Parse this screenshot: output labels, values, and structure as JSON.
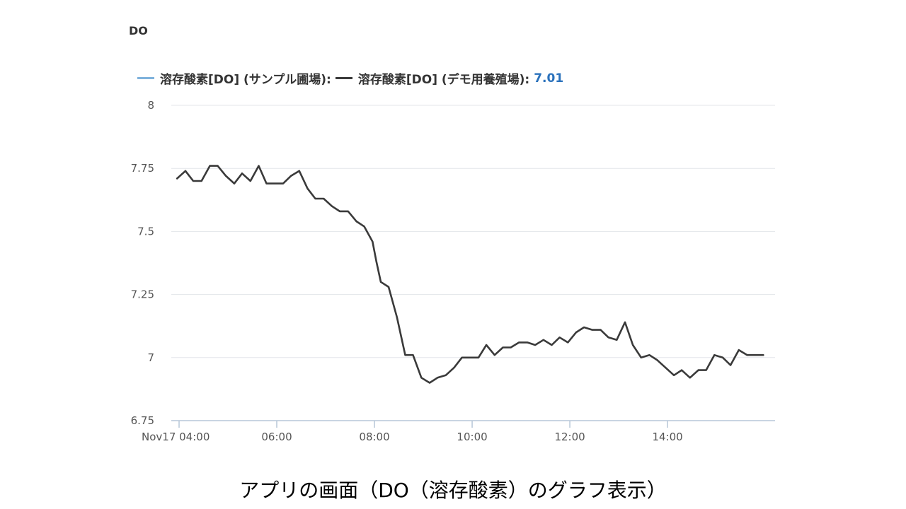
{
  "chart_data": {
    "type": "line",
    "title": "DO",
    "ylim": [
      6.75,
      8
    ],
    "y_ticks": [
      "8",
      "7.75",
      "7.5",
      "7.25",
      "7",
      "6.75"
    ],
    "x_ticks": [
      {
        "t": 4.0,
        "label": "Nov17 04:00"
      },
      {
        "t": 6.0,
        "label": "06:00"
      },
      {
        "t": 8.0,
        "label": "08:00"
      },
      {
        "t": 10.0,
        "label": "10:00"
      },
      {
        "t": 12.0,
        "label": "12:00"
      },
      {
        "t": 14.0,
        "label": "14:00"
      }
    ],
    "x_range": [
      4.0,
      16.1
    ],
    "grid": true,
    "series": [
      {
        "name": "溶存酸素[DO] (サンプル圃場):",
        "color": "#7fb2dc",
        "values": []
      },
      {
        "name": "溶存酸素[DO] (デモ用養殖場):",
        "color": "#3a3a3a",
        "current_value": "7.01",
        "x": [
          3.96,
          4.13,
          4.29,
          4.46,
          4.63,
          4.79,
          4.96,
          5.13,
          5.29,
          5.46,
          5.63,
          5.79,
          5.96,
          6.13,
          6.29,
          6.46,
          6.63,
          6.79,
          6.96,
          7.13,
          7.29,
          7.46,
          7.63,
          7.79,
          7.96,
          8.04,
          8.13,
          8.29,
          8.46,
          8.63,
          8.79,
          8.96,
          9.13,
          9.29,
          9.46,
          9.63,
          9.79,
          9.96,
          10.13,
          10.29,
          10.46,
          10.63,
          10.79,
          10.96,
          11.13,
          11.29,
          11.46,
          11.63,
          11.79,
          11.96,
          12.13,
          12.29,
          12.46,
          12.63,
          12.79,
          12.96,
          13.13,
          13.29,
          13.46,
          13.63,
          13.79,
          13.96,
          14.13,
          14.29,
          14.46,
          14.63,
          14.79,
          14.96,
          15.13,
          15.29,
          15.46,
          15.63,
          15.79,
          15.96
        ],
        "y": [
          7.71,
          7.74,
          7.7,
          7.7,
          7.76,
          7.76,
          7.72,
          7.69,
          7.73,
          7.7,
          7.76,
          7.69,
          7.69,
          7.69,
          7.72,
          7.74,
          7.67,
          7.63,
          7.63,
          7.6,
          7.58,
          7.58,
          7.54,
          7.52,
          7.46,
          7.38,
          7.3,
          7.28,
          7.16,
          7.01,
          7.01,
          6.92,
          6.9,
          6.92,
          6.93,
          6.96,
          7.0,
          7.0,
          7.0,
          7.05,
          7.01,
          7.04,
          7.04,
          7.06,
          7.06,
          7.05,
          7.07,
          7.05,
          7.08,
          7.06,
          7.1,
          7.12,
          7.11,
          7.11,
          7.08,
          7.07,
          7.14,
          7.05,
          7.0,
          7.01,
          6.99,
          6.96,
          6.93,
          6.95,
          6.92,
          6.95,
          6.95,
          7.01,
          7.0,
          6.97,
          7.03,
          7.01,
          7.01,
          7.01
        ]
      }
    ]
  },
  "caption": "アプリの画面（DO（溶存酸素）のグラフ表示）"
}
